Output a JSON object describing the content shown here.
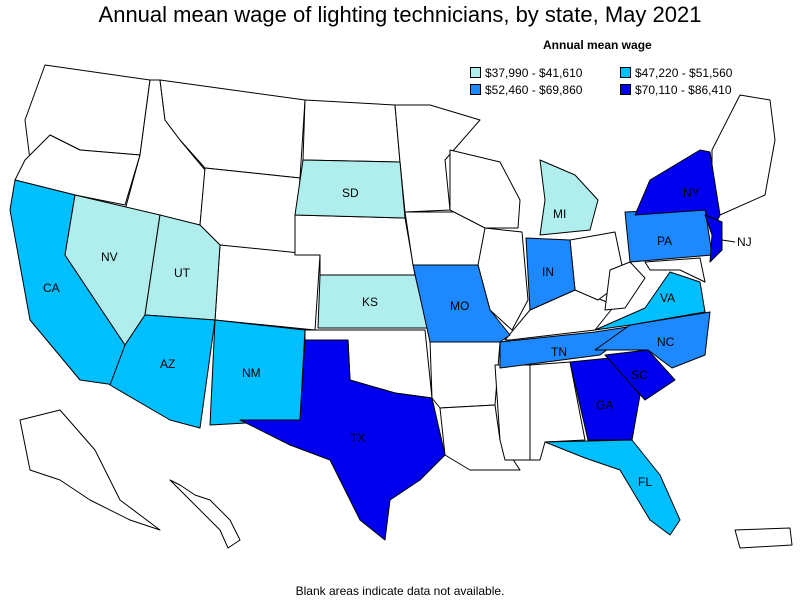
{
  "title": "Annual mean wage of lighting technicians, by state, May 2021",
  "legend": {
    "title": "Annual mean wage",
    "bins": [
      {
        "label": "$37,990 - $41,610",
        "color": "#b0eeee"
      },
      {
        "label": "$47,220 - $51,560",
        "color": "#00bfff"
      },
      {
        "label": "$52,460 - $69,860",
        "color": "#1e88ff"
      },
      {
        "label": "$70,110 - $86,410",
        "color": "#0000ee"
      }
    ]
  },
  "footnote": "Blank areas indicate data not available.",
  "states": {
    "CA": {
      "label": "CA",
      "bin": 1
    },
    "NV": {
      "label": "NV",
      "bin": 0
    },
    "UT": {
      "label": "UT",
      "bin": 0
    },
    "AZ": {
      "label": "AZ",
      "bin": 1
    },
    "NM": {
      "label": "NM",
      "bin": 1
    },
    "SD": {
      "label": "SD",
      "bin": 0
    },
    "KS": {
      "label": "KS",
      "bin": 0
    },
    "TX": {
      "label": "TX",
      "bin": 3
    },
    "MO": {
      "label": "MO",
      "bin": 2
    },
    "MI": {
      "label": "MI",
      "bin": 0
    },
    "IN": {
      "label": "IN",
      "bin": 2
    },
    "TN": {
      "label": "TN",
      "bin": 2
    },
    "GA": {
      "label": "GA",
      "bin": 3
    },
    "SC": {
      "label": "SC",
      "bin": 3
    },
    "NC": {
      "label": "NC",
      "bin": 2
    },
    "VA": {
      "label": "VA",
      "bin": 1
    },
    "PA": {
      "label": "PA",
      "bin": 2
    },
    "NY": {
      "label": "NY",
      "bin": 3
    },
    "NJ": {
      "label": "NJ",
      "bin": 3
    },
    "FL": {
      "label": "FL",
      "bin": 1
    }
  }
}
